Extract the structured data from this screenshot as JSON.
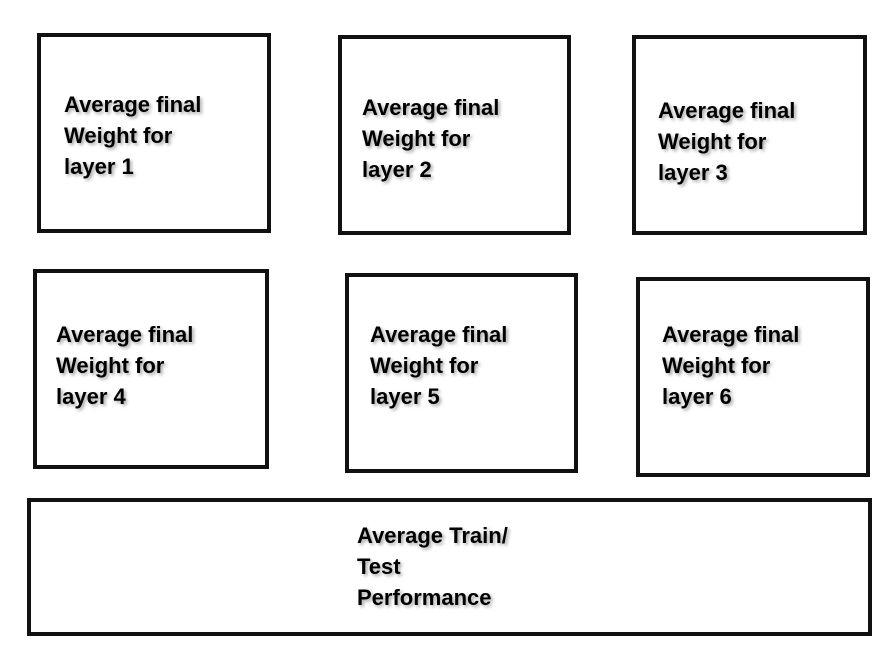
{
  "panels": [
    {
      "lines": [
        "Average final",
        "Weight for",
        "layer 1"
      ]
    },
    {
      "lines": [
        "Average final",
        "Weight for",
        "layer 2"
      ]
    },
    {
      "lines": [
        "Average final",
        "Weight for",
        "layer 3"
      ]
    },
    {
      "lines": [
        "Average final",
        "Weight for",
        "layer 4"
      ]
    },
    {
      "lines": [
        "Average final",
        "Weight for",
        "layer 5"
      ]
    },
    {
      "lines": [
        "Average final",
        "Weight for",
        "layer 6"
      ]
    },
    {
      "lines": [
        "Average Train/",
        "Test",
        "Performance"
      ]
    }
  ]
}
